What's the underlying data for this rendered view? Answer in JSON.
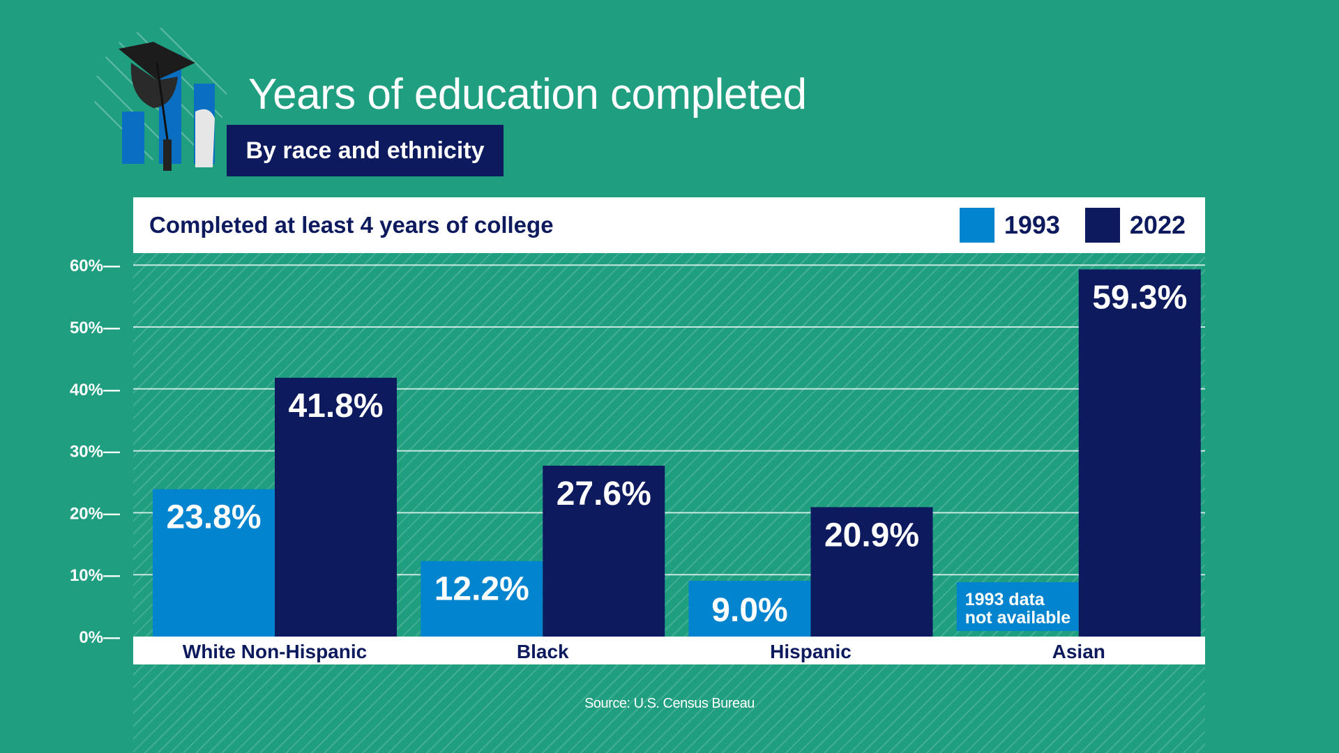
{
  "header": {
    "title": "Years of education completed",
    "subtitle": "By race and ethnicity"
  },
  "panel": {
    "title": "Completed at least 4 years of college"
  },
  "legend": [
    {
      "label": "1993",
      "color": "#0284cf"
    },
    {
      "label": "2022",
      "color": "#0d1a5e"
    }
  ],
  "footer": {
    "source": "Source: U.S. Census Bureau"
  },
  "chart_data": {
    "type": "bar",
    "title": "Completed at least 4 years of college",
    "categories": [
      "White Non-Hispanic",
      "Black",
      "Hispanic",
      "Asian"
    ],
    "series": [
      {
        "name": "1993",
        "color": "#0284cf",
        "values": [
          23.8,
          12.2,
          9.0,
          null
        ],
        "labels": [
          "23.8%",
          "12.2%",
          "9.0%",
          null
        ]
      },
      {
        "name": "2022",
        "color": "#0d1a5e",
        "values": [
          41.8,
          27.6,
          20.9,
          59.3
        ],
        "labels": [
          "41.8%",
          "27.6%",
          "20.9%",
          "59.3%"
        ]
      }
    ],
    "missing_note": [
      "1993 data",
      "not available"
    ],
    "yticks": [
      "0%—",
      "10%—",
      "20%—",
      "30%—",
      "40%—",
      "50%—",
      "60%—"
    ],
    "ylim": [
      0,
      60
    ],
    "grid": true,
    "legend_position": "top-right"
  }
}
